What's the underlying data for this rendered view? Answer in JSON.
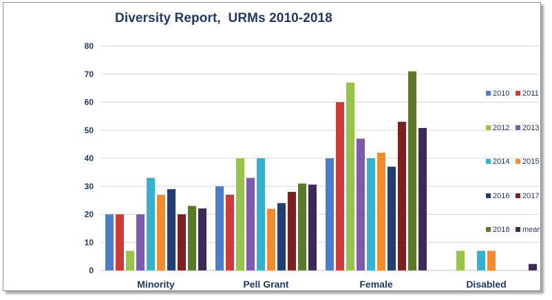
{
  "chart_data": {
    "type": "bar",
    "title": "Diversity Report,  URMs 2010-2018",
    "xlabel": "",
    "ylabel": "",
    "ylim": [
      0,
      80
    ],
    "yticks": [
      0,
      10,
      20,
      30,
      40,
      50,
      60,
      70,
      80
    ],
    "grid": true,
    "legend_position": "right",
    "categories": [
      "Minority",
      "Pell Grant",
      "Female",
      "Disabled"
    ],
    "series": [
      {
        "name": "2010",
        "color": "#4a7ec9",
        "values": [
          20,
          30,
          40,
          0
        ]
      },
      {
        "name": "2011",
        "color": "#cc3b38",
        "values": [
          20,
          27,
          60,
          0
        ]
      },
      {
        "name": "2012",
        "color": "#99c24a",
        "values": [
          7,
          40,
          67,
          7
        ]
      },
      {
        "name": "2013",
        "color": "#7f5aac",
        "values": [
          20,
          33,
          47,
          0
        ]
      },
      {
        "name": "2014",
        "color": "#35b0cd",
        "values": [
          33,
          40,
          40,
          7
        ]
      },
      {
        "name": "2015",
        "color": "#f48c2c",
        "values": [
          27,
          22,
          42,
          7
        ]
      },
      {
        "name": "2016",
        "color": "#1f3f73",
        "values": [
          29,
          24,
          37,
          0
        ]
      },
      {
        "name": "2017",
        "color": "#7d1f1f",
        "values": [
          20,
          28,
          53,
          0
        ]
      },
      {
        "name": "2018",
        "color": "#5b7a27",
        "values": [
          23,
          31,
          71,
          0
        ]
      },
      {
        "name": "mean",
        "color": "#3c2a58",
        "values": [
          22.1,
          30.6,
          50.8,
          2.3
        ]
      }
    ]
  }
}
